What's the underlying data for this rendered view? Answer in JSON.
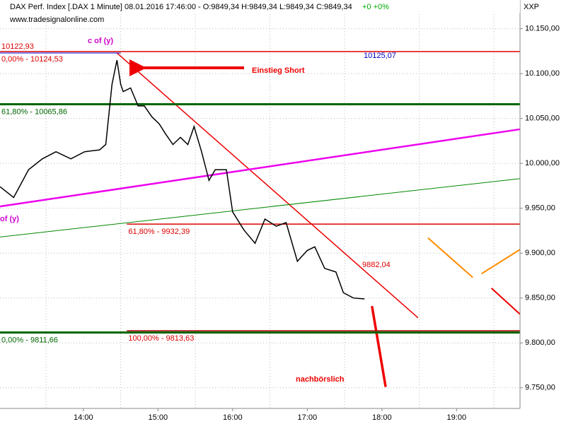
{
  "chart_data": {
    "type": "line",
    "title": "DAX Perf. Index [.DAX  1 Minute] 08.01.2016 17:46:00 - O:9849,34 H:9849,34 L:9849,34 C:9849,34",
    "change": "+0 +0%",
    "axis_label": "XXP",
    "source": "www.tradesignalonline.com",
    "x": [
      773,
      784,
      796,
      807,
      818,
      830,
      841,
      853,
      858,
      863,
      867,
      870,
      872,
      878,
      884,
      889,
      895,
      901,
      906,
      912,
      918,
      924,
      929,
      935,
      941,
      946,
      955,
      960,
      969,
      978,
      986,
      995,
      1003,
      1012,
      1020,
      1026,
      1034,
      1043,
      1049,
      1057,
      1066
    ],
    "series": [
      {
        "color": "#000000",
        "values": [
          9974,
          9962,
          9993,
          10005,
          10013,
          10005,
          10013,
          10015,
          10021,
          10088,
          10115,
          10088,
          10080,
          10084,
          10064,
          10064,
          10052,
          10044,
          10033,
          10021,
          10029,
          10021,
          10041,
          10013,
          9981,
          9993,
          9993,
          9946,
          9926,
          9911,
          9938,
          9930,
          9934,
          9891,
          9903,
          9907,
          9883,
          9879,
          9856,
          9850,
          9849
        ]
      }
    ],
    "xlim": [
      773,
      1191
    ],
    "ylim": [
      9727,
      10182
    ],
    "xticks": [
      {
        "value": 840,
        "label": "14:00"
      },
      {
        "value": 900,
        "label": "15:00"
      },
      {
        "value": 960,
        "label": "16:00"
      },
      {
        "value": 1020,
        "label": "17:00"
      },
      {
        "value": 1080,
        "label": "18:00"
      },
      {
        "value": 1140,
        "label": "19:00"
      }
    ],
    "xgrid": [
      810,
      870,
      930,
      990,
      1050,
      1110,
      1170
    ],
    "yticks": [
      {
        "value": 9750,
        "label": "9.750,00"
      },
      {
        "value": 9800,
        "label": "9.800,00"
      },
      {
        "value": 9850,
        "label": "9.850,00"
      },
      {
        "value": 9900,
        "label": "9.900,00"
      },
      {
        "value": 9950,
        "label": "9.950,00"
      },
      {
        "value": 10000,
        "label": "10.000,00"
      },
      {
        "value": 10050,
        "label": "10.050,00"
      },
      {
        "value": 10100,
        "label": "10.100,00"
      },
      {
        "value": 10150,
        "label": "10.150,00"
      }
    ],
    "grid": true,
    "levels": [
      {
        "value": 10122.93,
        "label": "10122,93",
        "color": "#0000cc",
        "width": 1,
        "x_from": 773,
        "x_to": 870
      },
      {
        "value": 10124.53,
        "label": "0,00% - 10124,53",
        "color": "#dd0000",
        "width": 1.5,
        "x_from": 773,
        "x_to": 1191
      },
      {
        "value": 10065.86,
        "label": "61,80% - 10065,86",
        "color": "#006600",
        "width": 3,
        "x_from": 773,
        "x_to": 1191
      },
      {
        "value": 9932.39,
        "label": "61,80% - 9932,39",
        "color": "#dd0000",
        "width": 1.5,
        "x_from": 875,
        "x_to": 1191
      },
      {
        "value": 9813.63,
        "label": "100,00% - 9813,63",
        "color": "#aa0000",
        "width": 1.5,
        "x_from": 875,
        "x_to": 1191
      },
      {
        "value": 9811.66,
        "label": "0,00% - 9811,66",
        "color": "#006600",
        "width": 3,
        "x_from": 773,
        "x_to": 1191
      }
    ],
    "lines": [
      {
        "x": [
          867,
          1109
        ],
        "y": [
          10123,
          9828
        ],
        "color": "#ee0000",
        "width": 1.5
      },
      {
        "x": [
          773,
          1191
        ],
        "y": [
          9952,
          10038
        ],
        "color": "#ee00ee",
        "width": 2.5
      },
      {
        "x": [
          773,
          1191
        ],
        "y": [
          9918,
          9983
        ],
        "color": "#008800",
        "width": 1
      },
      {
        "x": [
          1117,
          1153
        ],
        "y": [
          9917,
          9873
        ],
        "color": "#ff8c00",
        "width": 2
      },
      {
        "x": [
          1160,
          1191
        ],
        "y": [
          9877,
          9904
        ],
        "color": "#ff8c00",
        "width": 2
      },
      {
        "x": [
          1168,
          1191
        ],
        "y": [
          9861,
          9832
        ],
        "color": "#ee0000",
        "width": 2
      },
      {
        "x": [
          1072,
          1083
        ],
        "y": [
          9841,
          9751
        ],
        "color": "#ee0000",
        "width": 3.5
      }
    ],
    "annotations": [
      "c of (y)",
      "10125,07",
      "Einstieg Short",
      "9882,04",
      "nachbörslich",
      "of (y)"
    ]
  }
}
